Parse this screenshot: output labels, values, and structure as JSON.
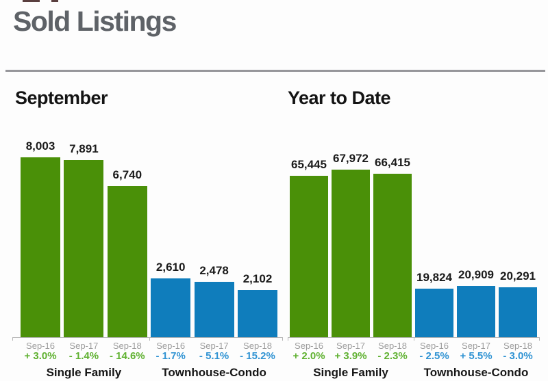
{
  "title": "Sold Listings",
  "colors": {
    "title_text": "#5e6267",
    "divider": "#96969a",
    "heading_text": "#141414",
    "bar_green": "#4a9008",
    "bar_blue": "#0f7dbc",
    "pct_green": "#5fb130",
    "pct_blue": "#3093d3",
    "x_label": "#9c9c9c",
    "axis": "#b5b5b5"
  },
  "chart_data": [
    {
      "type": "bar",
      "title": "September",
      "ylim": [
        0,
        8600
      ],
      "legend_position": "none",
      "grid": false,
      "groups": [
        {
          "label": "Single Family",
          "color": "green",
          "bars": [
            {
              "x": "Sep-16",
              "value": 8003,
              "value_label": "8,003",
              "pct": "+ 3.0%"
            },
            {
              "x": "Sep-17",
              "value": 7891,
              "value_label": "7,891",
              "pct": "- 1.4%"
            },
            {
              "x": "Sep-18",
              "value": 6740,
              "value_label": "6,740",
              "pct": "- 14.6%"
            }
          ]
        },
        {
          "label": "Townhouse-Condo",
          "color": "blue",
          "bars": [
            {
              "x": "Sep-16",
              "value": 2610,
              "value_label": "2,610",
              "pct": "- 1.7%"
            },
            {
              "x": "Sep-17",
              "value": 2478,
              "value_label": "2,478",
              "pct": "- 5.1%"
            },
            {
              "x": "Sep-18",
              "value": 2102,
              "value_label": "2,102",
              "pct": "- 15.2%"
            }
          ]
        }
      ]
    },
    {
      "type": "bar",
      "title": "Year to Date",
      "ylim": [
        0,
        71500
      ],
      "legend_position": "none",
      "grid": false,
      "groups": [
        {
          "label": "Single Family",
          "color": "green",
          "bars": [
            {
              "x": "Sep-16",
              "value": 65445,
              "value_label": "65,445",
              "pct": "+ 2.0%"
            },
            {
              "x": "Sep-17",
              "value": 67972,
              "value_label": "67,972",
              "pct": "+ 3.9%"
            },
            {
              "x": "Sep-18",
              "value": 66415,
              "value_label": "66,415",
              "pct": "- 2.3%"
            }
          ]
        },
        {
          "label": "Townhouse-Condo",
          "color": "blue",
          "bars": [
            {
              "x": "Sep-16",
              "value": 19824,
              "value_label": "19,824",
              "pct": "- 2.5%"
            },
            {
              "x": "Sep-17",
              "value": 20909,
              "value_label": "20,909",
              "pct": "+ 5.5%"
            },
            {
              "x": "Sep-18",
              "value": 20291,
              "value_label": "20,291",
              "pct": "- 3.0%"
            }
          ]
        }
      ]
    }
  ]
}
